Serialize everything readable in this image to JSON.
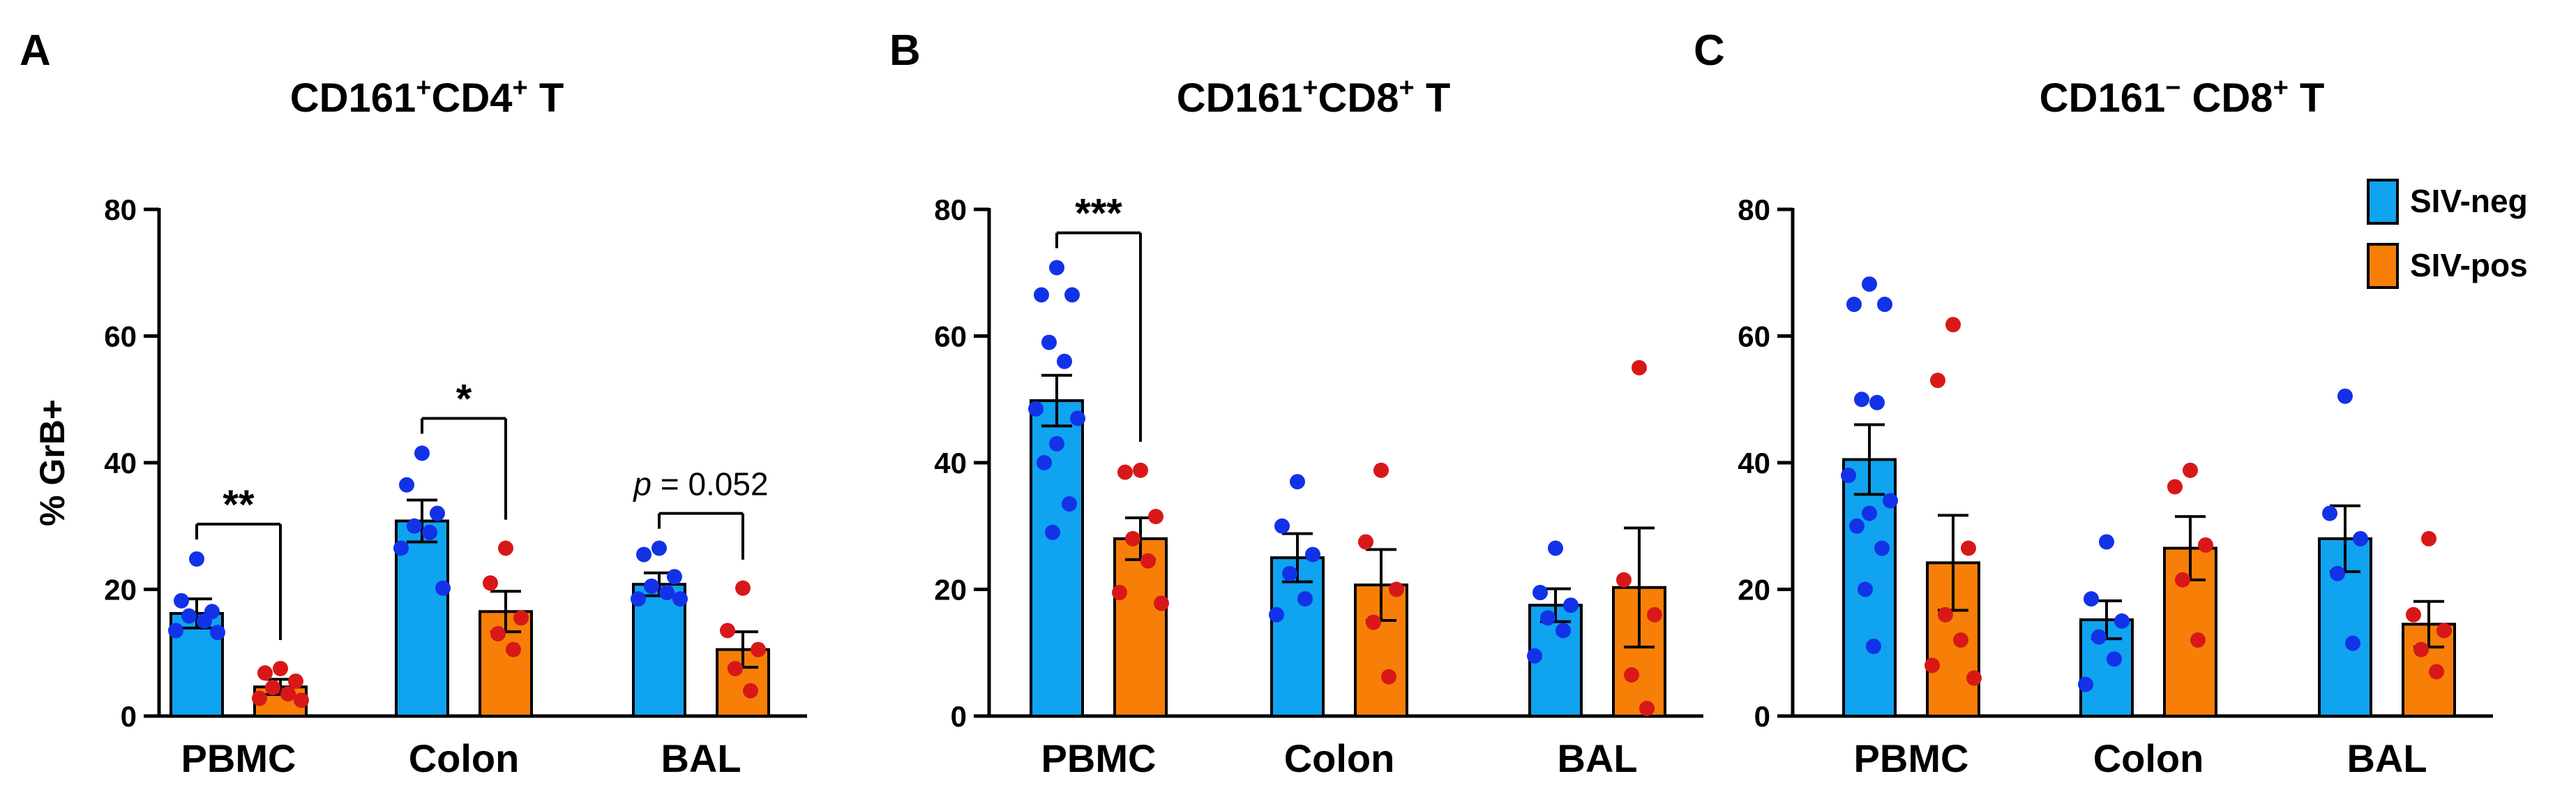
{
  "colors": {
    "neg_bar": "#0FA3F0",
    "pos_bar": "#F77F07",
    "neg_dot": "#1232E8",
    "pos_dot": "#D81818",
    "axis": "#000000"
  },
  "legend": [
    {
      "label": "SIV-neg",
      "key": "neg"
    },
    {
      "label": "SIV-pos",
      "key": "pos"
    }
  ],
  "chart_data": [
    {
      "panel": "A",
      "type": "bar",
      "title_parts": [
        {
          "t": "CD161",
          "sup": false
        },
        {
          "t": "+",
          "sup": true
        },
        {
          "t": "CD4",
          "sup": false
        },
        {
          "t": "+",
          "sup": true
        },
        {
          "t": " T",
          "sup": false
        }
      ],
      "ylabel": "% GrB+",
      "ylim": [
        0,
        80
      ],
      "yticks": [
        "0",
        "20",
        "40",
        "60",
        "80"
      ],
      "categories": [
        "PBMC",
        "Colon",
        "BAL"
      ],
      "series": [
        {
          "name": "SIV-neg",
          "key": "neg",
          "means": [
            16.2,
            30.8,
            20.8
          ],
          "sem": [
            2.3,
            3.3,
            1.8
          ],
          "points": [
            [
              24.8,
              18.2,
              16.5,
              15.8,
              15.0,
              13.5,
              13.2
            ],
            [
              41.5,
              36.5,
              32.0,
              30.0,
              29.0,
              26.5,
              20.2
            ],
            [
              26.5,
              25.5,
              22.0,
              20.5,
              19.5,
              18.5,
              18.5
            ]
          ]
        },
        {
          "name": "SIV-pos",
          "key": "pos",
          "means": [
            4.6,
            16.5,
            10.5
          ],
          "sem": [
            1.2,
            3.2,
            2.8
          ],
          "points": [
            [
              7.5,
              6.8,
              5.5,
              4.5,
              3.5,
              2.8,
              2.5
            ],
            [
              26.5,
              21.0,
              15.5,
              13.0,
              10.5
            ],
            [
              20.2,
              13.5,
              10.5,
              7.5,
              4.0
            ]
          ]
        }
      ],
      "annotations": [
        {
          "category": 0,
          "label": "**",
          "italic_p": false
        },
        {
          "category": 1,
          "label": "*",
          "italic_p": false
        },
        {
          "category": 2,
          "label": "= 0.052",
          "italic_p": true
        }
      ]
    },
    {
      "panel": "B",
      "type": "bar",
      "title_parts": [
        {
          "t": "CD161",
          "sup": false
        },
        {
          "t": "+",
          "sup": true
        },
        {
          "t": "CD8",
          "sup": false
        },
        {
          "t": "+",
          "sup": true
        },
        {
          "t": " T",
          "sup": false
        }
      ],
      "ylabel": "",
      "ylim": [
        0,
        80
      ],
      "yticks": [
        "0",
        "20",
        "40",
        "60",
        "80"
      ],
      "categories": [
        "PBMC",
        "Colon",
        "BAL"
      ],
      "series": [
        {
          "name": "SIV-neg",
          "key": "neg",
          "means": [
            49.8,
            25.0,
            17.5
          ],
          "sem": [
            4.0,
            3.8,
            2.6
          ],
          "points": [
            [
              70.8,
              66.5,
              66.5,
              59.0,
              56.0,
              48.5,
              47.0,
              43.0,
              40.0,
              33.5,
              29.0
            ],
            [
              37.0,
              30.0,
              25.5,
              22.5,
              18.5,
              16.0
            ],
            [
              26.5,
              19.5,
              17.5,
              15.5,
              13.5,
              9.5
            ]
          ]
        },
        {
          "name": "SIV-pos",
          "key": "pos",
          "means": [
            28.0,
            20.7,
            20.3
          ],
          "sem": [
            3.3,
            5.6,
            9.4
          ],
          "points": [
            [
              38.8,
              38.5,
              31.5,
              28.0,
              24.5,
              19.5,
              17.8
            ],
            [
              38.8,
              27.5,
              20.0,
              14.8,
              6.2
            ],
            [
              55.0,
              21.5,
              16.0,
              6.5,
              1.2
            ]
          ]
        }
      ],
      "annotations": [
        {
          "category": 0,
          "label": "***",
          "italic_p": false
        }
      ]
    },
    {
      "panel": "C",
      "type": "bar",
      "title_parts": [
        {
          "t": "CD161",
          "sup": false
        },
        {
          "t": "−",
          "sup": true
        },
        {
          "t": " CD8",
          "sup": false
        },
        {
          "t": "+",
          "sup": true
        },
        {
          "t": " T",
          "sup": false
        }
      ],
      "ylabel": "",
      "ylim": [
        0,
        80
      ],
      "yticks": [
        "0",
        "20",
        "40",
        "60",
        "80"
      ],
      "categories": [
        "PBMC",
        "Colon",
        "BAL"
      ],
      "series": [
        {
          "name": "SIV-neg",
          "key": "neg",
          "means": [
            40.5,
            15.2,
            28.0
          ],
          "sem": [
            5.5,
            3.0,
            5.2
          ],
          "points": [
            [
              68.2,
              65.0,
              65.0,
              50.0,
              49.5,
              38.0,
              34.0,
              32.0,
              30.0,
              26.5,
              20.0,
              11.0
            ],
            [
              27.5,
              18.5,
              15.0,
              12.5,
              9.0,
              5.0
            ],
            [
              50.5,
              32.0,
              28.0,
              22.5,
              11.5
            ]
          ]
        },
        {
          "name": "SIV-pos",
          "key": "pos",
          "means": [
            24.2,
            26.5,
            14.5
          ],
          "sem": [
            7.5,
            5.0,
            3.6
          ],
          "points": [
            [
              61.8,
              53.0,
              26.5,
              16.0,
              12.0,
              8.0,
              6.0
            ],
            [
              38.8,
              36.2,
              27.0,
              21.5,
              12.0
            ],
            [
              28.0,
              16.0,
              13.5,
              10.5,
              7.0
            ]
          ]
        }
      ],
      "annotations": []
    }
  ]
}
